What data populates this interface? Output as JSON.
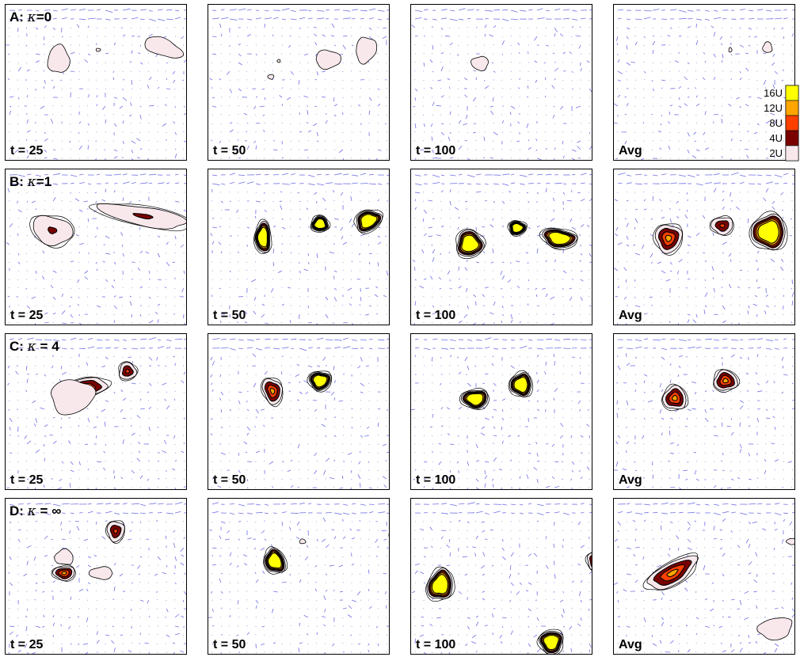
{
  "rows": [
    {
      "label_prefix": "A: ",
      "kappa": "κ",
      "kappa_value": "=0"
    },
    {
      "label_prefix": "B: ",
      "kappa": "κ",
      "kappa_value": "=1"
    },
    {
      "label_prefix": "C: ",
      "kappa": "κ",
      "kappa_value": " = 4"
    },
    {
      "label_prefix": "D: ",
      "kappa": "κ",
      "kappa_value": " = ∞"
    }
  ],
  "columns": [
    "t = 25",
    "t = 50",
    "t = 100",
    "Avg"
  ],
  "legend": {
    "items": [
      {
        "label": "16U",
        "color": "#ffff00"
      },
      {
        "label": "12U",
        "color": "#ffa500"
      },
      {
        "label": "8U",
        "color": "#ff4000"
      },
      {
        "label": "4U",
        "color": "#7a0000"
      },
      {
        "label": "2U",
        "color": "#f8e8ec"
      }
    ]
  },
  "colors": {
    "vector": "#6f6fe6",
    "contour": "#000000",
    "frame": "#000000"
  },
  "contour_levels": [
    "2U",
    "4U",
    "8U",
    "12U",
    "16U"
  ]
}
